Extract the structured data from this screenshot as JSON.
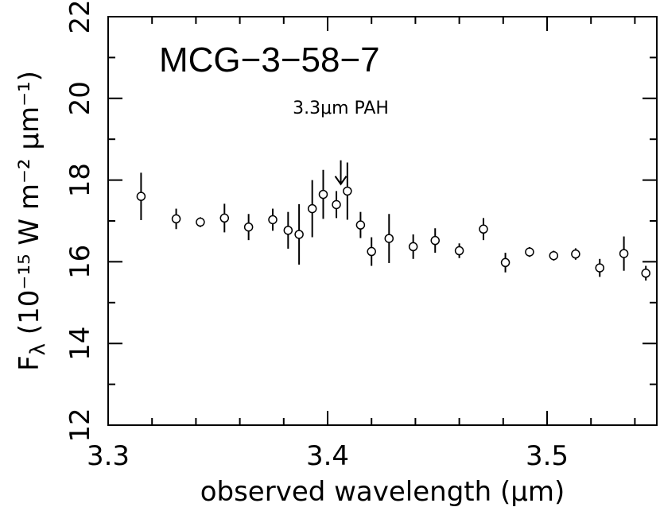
{
  "chart_data": {
    "type": "scatter",
    "title": "MCG−3−58−7",
    "xlabel": "observed wavelength (μm)",
    "ylabel_prefix": "F",
    "ylabel_sub": "λ",
    "ylabel_units": " (10⁻¹⁵ W m⁻² μm⁻¹)",
    "xlim": [
      3.3,
      3.55
    ],
    "ylim": [
      12,
      22
    ],
    "x_ticks": [
      {
        "value": 3.3,
        "label": "3.3"
      },
      {
        "value": 3.4,
        "label": "3.4"
      },
      {
        "value": 3.5,
        "label": "3.5"
      }
    ],
    "y_ticks": [
      {
        "value": 12,
        "label": "12"
      },
      {
        "value": 14,
        "label": "14"
      },
      {
        "value": 16,
        "label": "16"
      },
      {
        "value": 18,
        "label": "18"
      },
      {
        "value": 20,
        "label": "20"
      },
      {
        "value": 22,
        "label": "22"
      }
    ],
    "annotation": {
      "text": "3.3μm PAH",
      "x": 3.406,
      "y_tip": 17.9
    },
    "series": [
      {
        "name": "MCG-3-58-7",
        "marker": "open-circle",
        "points": [
          {
            "x": 3.315,
            "y": 17.6,
            "err": 0.58
          },
          {
            "x": 3.331,
            "y": 17.05,
            "err": 0.25
          },
          {
            "x": 3.342,
            "y": 16.97,
            "err": 0.12
          },
          {
            "x": 3.353,
            "y": 17.07,
            "err": 0.35
          },
          {
            "x": 3.364,
            "y": 16.85,
            "err": 0.32
          },
          {
            "x": 3.375,
            "y": 17.03,
            "err": 0.27
          },
          {
            "x": 3.382,
            "y": 16.77,
            "err": 0.45
          },
          {
            "x": 3.387,
            "y": 16.67,
            "err": 0.74
          },
          {
            "x": 3.393,
            "y": 17.3,
            "err": 0.7
          },
          {
            "x": 3.398,
            "y": 17.65,
            "err": 0.6
          },
          {
            "x": 3.404,
            "y": 17.4,
            "err": 0.33
          },
          {
            "x": 3.409,
            "y": 17.73,
            "err": 0.7
          },
          {
            "x": 3.415,
            "y": 16.9,
            "err": 0.32
          },
          {
            "x": 3.42,
            "y": 16.25,
            "err": 0.35
          },
          {
            "x": 3.428,
            "y": 16.57,
            "err": 0.6
          },
          {
            "x": 3.439,
            "y": 16.37,
            "err": 0.3
          },
          {
            "x": 3.449,
            "y": 16.52,
            "err": 0.3
          },
          {
            "x": 3.46,
            "y": 16.27,
            "err": 0.18
          },
          {
            "x": 3.471,
            "y": 16.8,
            "err": 0.27
          },
          {
            "x": 3.481,
            "y": 15.98,
            "err": 0.24
          },
          {
            "x": 3.492,
            "y": 16.24,
            "err": 0.12
          },
          {
            "x": 3.503,
            "y": 16.15,
            "err": 0.12
          },
          {
            "x": 3.513,
            "y": 16.19,
            "err": 0.14
          },
          {
            "x": 3.524,
            "y": 15.85,
            "err": 0.22
          },
          {
            "x": 3.535,
            "y": 16.2,
            "err": 0.42
          },
          {
            "x": 3.545,
            "y": 15.72,
            "err": 0.18
          }
        ]
      }
    ]
  }
}
